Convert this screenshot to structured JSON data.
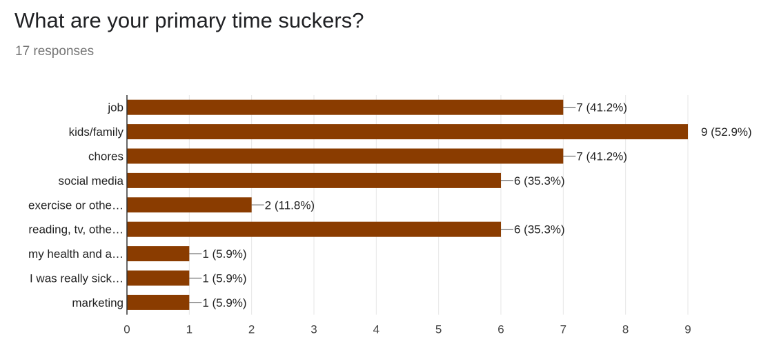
{
  "question": {
    "title": "What are your primary time suckers?",
    "responses": "17 responses"
  },
  "chart_data": {
    "type": "bar",
    "orientation": "horizontal",
    "categories": [
      "job",
      "kids/family",
      "chores",
      "social media",
      "exercise or othe…",
      "reading, tv, othe…",
      "my health and a…",
      "I was really sick…",
      "marketing"
    ],
    "values": [
      7,
      9,
      7,
      6,
      2,
      6,
      1,
      1,
      1
    ],
    "data_labels": [
      "7 (41.2%)",
      "9 (52.9%)",
      "7 (41.2%)",
      "6 (35.3%)",
      "2 (11.8%)",
      "6 (35.3%)",
      "1 (5.9%)",
      "1 (5.9%)",
      "1 (5.9%)"
    ],
    "x_ticks": [
      "0",
      "1",
      "2",
      "3",
      "4",
      "5",
      "6",
      "7",
      "8",
      "9"
    ],
    "xlim": [
      0,
      9
    ],
    "grid": true,
    "bar_color": "#8a3c00"
  }
}
